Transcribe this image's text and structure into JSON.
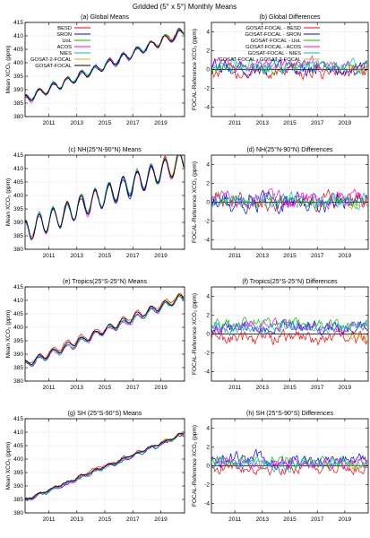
{
  "figure": {
    "title": "Gridded (5° x 5°) Monthly Means"
  },
  "chart_data": [
    {
      "type": "line",
      "title": "(a) Global Means",
      "ylabel": "Mean XCO₂ (ppm)",
      "xlabel": "",
      "xlim": [
        2009.3,
        2020.7
      ],
      "ylim": [
        380,
        415
      ],
      "xticks": [
        2011,
        2013,
        2015,
        2017,
        2019
      ],
      "yticks": [
        380,
        385,
        390,
        395,
        400,
        405,
        410,
        415
      ],
      "grid": true,
      "legend": "top-left",
      "model": {
        "base": 386.4,
        "rate": 2.22,
        "amp": 1.5,
        "start": 2009.3
      },
      "series": [
        {
          "name": "BESD",
          "color": "#ff0000",
          "start": 2009.3,
          "offset": 0.2,
          "noise": 0.4
        },
        {
          "name": "SRON",
          "color": "#0000ff",
          "start": 2009.3,
          "offset": -0.3,
          "noise": 0.4
        },
        {
          "name": "UoL",
          "color": "#00c000",
          "start": 2009.3,
          "offset": 0.1,
          "noise": 0.4
        },
        {
          "name": "ACOS",
          "color": "#ff00ff",
          "start": 2009.3,
          "offset": -0.1,
          "noise": 0.4
        },
        {
          "name": "NIES",
          "color": "#00c0c0",
          "start": 2009.3,
          "offset": 0.3,
          "noise": 0.4
        },
        {
          "name": "GOSAT-2-FOCAL",
          "color": "#e0b000",
          "start": 2019.1,
          "offset": 0.2,
          "noise": 0.3
        },
        {
          "name": "GOSAT-FOCAL",
          "color": "#000000",
          "start": 2009.3,
          "offset": 0.0,
          "noise": 0.2
        }
      ]
    },
    {
      "type": "line",
      "title": "(b) Global Differences",
      "ylabel": "FOCAL-Reference XCO₂ (ppm)",
      "xlabel": "",
      "xlim": [
        2009.3,
        2020.7
      ],
      "ylim": [
        -5,
        5
      ],
      "xticks": [
        2011,
        2013,
        2015,
        2017,
        2019
      ],
      "yticks": [
        -4,
        -2,
        0,
        2,
        4
      ],
      "grid": true,
      "legend": "top-left",
      "zero_line": true,
      "series": [
        {
          "name": "GOSAT-FOCAL - BESD",
          "color": "#ff0000",
          "start": 2009.3,
          "mean": -0.3,
          "noise": 0.6
        },
        {
          "name": "GOSAT-FOCAL - SRON",
          "color": "#0000ff",
          "start": 2009.3,
          "mean": 0.1,
          "noise": 0.6
        },
        {
          "name": "GOSAT-FOCAL - UoL",
          "color": "#00c000",
          "start": 2009.3,
          "mean": 0.2,
          "noise": 0.5
        },
        {
          "name": "GOSAT-FOCAL - ACOS",
          "color": "#ff00ff",
          "start": 2009.3,
          "mean": 0.6,
          "noise": 0.5
        },
        {
          "name": "GOSAT-FOCAL - NIES",
          "color": "#00c0c0",
          "start": 2009.3,
          "mean": 0.4,
          "noise": 0.5
        },
        {
          "name": "GOSAT-FOCAL - GOSAT-2-FOCAL",
          "color": "#e0b000",
          "start": 2019.1,
          "mean": 0.0,
          "noise": 0.4
        }
      ]
    },
    {
      "type": "line",
      "title": "(c) NH(25°N-90°N) Means",
      "ylabel": "Mean XCO₂ (ppm)",
      "xlabel": "",
      "xlim": [
        2009.3,
        2020.7
      ],
      "ylim": [
        380,
        415
      ],
      "xticks": [
        2011,
        2013,
        2015,
        2017,
        2019
      ],
      "yticks": [
        380,
        385,
        390,
        395,
        400,
        405,
        410,
        415
      ],
      "grid": true,
      "model": {
        "base": 386.8,
        "rate": 2.28,
        "amp": 4.0,
        "start": 2009.3
      },
      "series": [
        {
          "name": "BESD",
          "color": "#ff0000",
          "start": 2009.3,
          "offset": 0.2,
          "noise": 0.6
        },
        {
          "name": "SRON",
          "color": "#0000ff",
          "start": 2009.3,
          "offset": -0.3,
          "noise": 0.6
        },
        {
          "name": "UoL",
          "color": "#00c000",
          "start": 2009.3,
          "offset": 0.1,
          "noise": 0.6
        },
        {
          "name": "ACOS",
          "color": "#ff00ff",
          "start": 2009.3,
          "offset": -0.1,
          "noise": 0.6
        },
        {
          "name": "NIES",
          "color": "#00c0c0",
          "start": 2009.3,
          "offset": 0.3,
          "noise": 0.6
        },
        {
          "name": "GOSAT-2-FOCAL",
          "color": "#e0b000",
          "start": 2019.1,
          "offset": 0.2,
          "noise": 0.5
        },
        {
          "name": "GOSAT-FOCAL",
          "color": "#000000",
          "start": 2009.3,
          "offset": 0.0,
          "noise": 0.3
        }
      ]
    },
    {
      "type": "line",
      "title": "(d) NH(25°N-90°N) Differences",
      "ylabel": "FOCAL-Reference XCO₂ (ppm)",
      "xlabel": "",
      "xlim": [
        2009.3,
        2020.7
      ],
      "ylim": [
        -5,
        5
      ],
      "xticks": [
        2011,
        2013,
        2015,
        2017,
        2019
      ],
      "yticks": [
        -4,
        -2,
        0,
        2,
        4
      ],
      "grid": true,
      "zero_line": true,
      "series": [
        {
          "name": "GOSAT-FOCAL - BESD",
          "color": "#ff0000",
          "start": 2009.3,
          "mean": 0.1,
          "noise": 0.7
        },
        {
          "name": "GOSAT-FOCAL - SRON",
          "color": "#0000ff",
          "start": 2009.3,
          "mean": 0.0,
          "noise": 0.8
        },
        {
          "name": "GOSAT-FOCAL - UoL",
          "color": "#00c000",
          "start": 2009.3,
          "mean": 0.2,
          "noise": 0.6
        },
        {
          "name": "GOSAT-FOCAL - ACOS",
          "color": "#ff00ff",
          "start": 2009.3,
          "mean": 0.3,
          "noise": 0.6
        },
        {
          "name": "GOSAT-FOCAL - NIES",
          "color": "#00c0c0",
          "start": 2009.3,
          "mean": 0.2,
          "noise": 0.6
        },
        {
          "name": "GOSAT-FOCAL - GOSAT-2-FOCAL",
          "color": "#e0b000",
          "start": 2019.1,
          "mean": 0.0,
          "noise": 0.5
        }
      ]
    },
    {
      "type": "line",
      "title": "(e) Tropics(25°S-25°N) Means",
      "ylabel": "Mean XCO₂ (ppm)",
      "xlabel": "",
      "xlim": [
        2009.3,
        2020.7
      ],
      "ylim": [
        380,
        415
      ],
      "xticks": [
        2011,
        2013,
        2015,
        2017,
        2019
      ],
      "yticks": [
        380,
        385,
        390,
        395,
        400,
        405,
        410,
        415
      ],
      "grid": true,
      "model": {
        "base": 386.4,
        "rate": 2.22,
        "amp": 1.2,
        "start": 2009.3
      },
      "series": [
        {
          "name": "BESD",
          "color": "#ff0000",
          "start": 2009.3,
          "offset": 0.4,
          "noise": 0.4
        },
        {
          "name": "SRON",
          "color": "#0000ff",
          "start": 2009.3,
          "offset": -0.5,
          "noise": 0.4
        },
        {
          "name": "UoL",
          "color": "#00c000",
          "start": 2009.3,
          "offset": -0.3,
          "noise": 0.4
        },
        {
          "name": "ACOS",
          "color": "#ff00ff",
          "start": 2009.3,
          "offset": -0.8,
          "noise": 0.4
        },
        {
          "name": "NIES",
          "color": "#00c0c0",
          "start": 2009.3,
          "offset": -0.6,
          "noise": 0.4
        },
        {
          "name": "GOSAT-2-FOCAL",
          "color": "#e0b000",
          "start": 2019.1,
          "offset": 0.2,
          "noise": 0.3
        },
        {
          "name": "GOSAT-FOCAL",
          "color": "#000000",
          "start": 2009.3,
          "offset": 0.0,
          "noise": 0.2
        }
      ]
    },
    {
      "type": "line",
      "title": "(f) Tropics(25°S-25°N) Differences",
      "ylabel": "FOCAL-Reference XCO₂ (ppm)",
      "xlabel": "",
      "xlim": [
        2009.3,
        2020.7
      ],
      "ylim": [
        -5,
        5
      ],
      "xticks": [
        2011,
        2013,
        2015,
        2017,
        2019
      ],
      "yticks": [
        -4,
        -2,
        0,
        2,
        4
      ],
      "grid": true,
      "zero_line": true,
      "series": [
        {
          "name": "GOSAT-FOCAL - BESD",
          "color": "#ff0000",
          "start": 2009.3,
          "mean": -0.4,
          "noise": 0.6
        },
        {
          "name": "GOSAT-FOCAL - SRON",
          "color": "#0000ff",
          "start": 2009.3,
          "mean": 0.6,
          "noise": 0.5
        },
        {
          "name": "GOSAT-FOCAL - UoL",
          "color": "#00c000",
          "start": 2009.3,
          "mean": 1.0,
          "noise": 0.5
        },
        {
          "name": "GOSAT-FOCAL - ACOS",
          "color": "#ff00ff",
          "start": 2009.3,
          "mean": 0.8,
          "noise": 0.5
        },
        {
          "name": "GOSAT-FOCAL - NIES",
          "color": "#00c0c0",
          "start": 2009.3,
          "mean": 0.7,
          "noise": 0.5
        },
        {
          "name": "GOSAT-FOCAL - GOSAT-2-FOCAL",
          "color": "#e0b000",
          "start": 2019.1,
          "mean": -0.2,
          "noise": 0.4
        }
      ]
    },
    {
      "type": "line",
      "title": "(g) SH (25°S-90°S) Means",
      "ylabel": "Mean XCO₂ (ppm)",
      "xlabel": "",
      "xlim": [
        2009.3,
        2020.7
      ],
      "ylim": [
        380,
        415
      ],
      "xticks": [
        2011,
        2013,
        2015,
        2017,
        2019
      ],
      "yticks": [
        380,
        385,
        390,
        395,
        400,
        405,
        410,
        415
      ],
      "grid": true,
      "model": {
        "base": 384.8,
        "rate": 2.18,
        "amp": 0.4,
        "start": 2009.3
      },
      "series": [
        {
          "name": "BESD",
          "color": "#ff0000",
          "start": 2009.3,
          "offset": 0.2,
          "noise": 0.4
        },
        {
          "name": "SRON",
          "color": "#0000ff",
          "start": 2009.3,
          "offset": -0.6,
          "noise": 0.4
        },
        {
          "name": "UoL",
          "color": "#00c000",
          "start": 2009.3,
          "offset": -0.3,
          "noise": 0.4
        },
        {
          "name": "ACOS",
          "color": "#ff00ff",
          "start": 2009.3,
          "offset": -0.4,
          "noise": 0.4
        },
        {
          "name": "NIES",
          "color": "#00c0c0",
          "start": 2009.3,
          "offset": -0.2,
          "noise": 0.4
        },
        {
          "name": "GOSAT-2-FOCAL",
          "color": "#e0b000",
          "start": 2019.1,
          "offset": 0.3,
          "noise": 0.3
        },
        {
          "name": "GOSAT-FOCAL",
          "color": "#000000",
          "start": 2009.3,
          "offset": 0.0,
          "noise": 0.2
        }
      ]
    },
    {
      "type": "line",
      "title": "(h) SH (25°S-90°S) Differences",
      "ylabel": "FOCAL-Reference XCO₂ (ppm)",
      "xlabel": "",
      "xlim": [
        2009.3,
        2020.7
      ],
      "ylim": [
        -5,
        5
      ],
      "xticks": [
        2011,
        2013,
        2015,
        2017,
        2019
      ],
      "yticks": [
        -4,
        -2,
        0,
        2,
        4
      ],
      "grid": true,
      "zero_line": true,
      "series": [
        {
          "name": "GOSAT-FOCAL - BESD",
          "color": "#ff0000",
          "start": 2009.3,
          "mean": -0.2,
          "noise": 0.5
        },
        {
          "name": "GOSAT-FOCAL - SRON",
          "color": "#0000ff",
          "start": 2009.3,
          "mean": 0.7,
          "noise": 0.6
        },
        {
          "name": "GOSAT-FOCAL - UoL",
          "color": "#00c000",
          "start": 2009.3,
          "mean": 0.4,
          "noise": 0.5
        },
        {
          "name": "GOSAT-FOCAL - ACOS",
          "color": "#ff00ff",
          "start": 2009.3,
          "mean": 0.3,
          "noise": 0.5
        },
        {
          "name": "GOSAT-FOCAL - NIES",
          "color": "#00c0c0",
          "start": 2009.3,
          "mean": 0.2,
          "noise": 0.5
        },
        {
          "name": "GOSAT-FOCAL - GOSAT-2-FOCAL",
          "color": "#e0b000",
          "start": 2019.1,
          "mean": 0.1,
          "noise": 0.4
        }
      ]
    }
  ]
}
